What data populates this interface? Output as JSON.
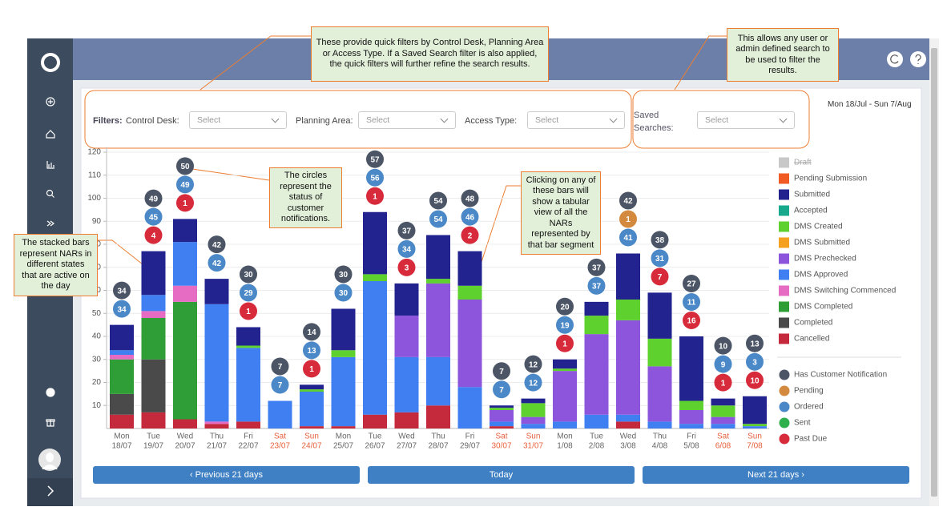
{
  "header": {
    "date_range": "Mon 18/Jul - Sun 7/Aug"
  },
  "filters": {
    "label": "Filters:",
    "control_desk": {
      "label": "Control Desk:",
      "placeholder": "Select"
    },
    "planning_area": {
      "label": "Planning Area:",
      "placeholder": "Select"
    },
    "access_type": {
      "label": "Access Type:",
      "placeholder": "Select"
    },
    "saved_searches": {
      "label": "Saved Searches:",
      "placeholder": "Select"
    }
  },
  "callouts": [
    "These provide quick filters by Control Desk, Planning Area or Access Type. If a Saved Search filter is also applied, the quick filters will further refine the search results.",
    "This allows any user or admin defined search to be used to filter the results.",
    "The circles represent the status of customer notifications.",
    "Clicking on any of these bars will show a tabular view of all the NARs represented by that bar segment",
    "The stacked bars represent NARs in different states that are active on the day"
  ],
  "buttons": {
    "previous": "‹ Previous 21 days",
    "today": "Today",
    "next": "Next 21 days ›"
  },
  "chart_data": {
    "type": "bar",
    "stacked": true,
    "days": [
      "Mon",
      "Tue",
      "Wed",
      "Thu",
      "Fri",
      "Sat",
      "Sun",
      "Mon",
      "Tue",
      "Wed",
      "Thu",
      "Fri",
      "Sat",
      "Sun",
      "Mon",
      "Tue",
      "Wed",
      "Thu",
      "Fri",
      "Sat",
      "Sun"
    ],
    "dates": [
      "18/07",
      "19/07",
      "20/07",
      "21/07",
      "22/07",
      "23/07",
      "24/07",
      "25/07",
      "26/07",
      "27/07",
      "28/07",
      "29/07",
      "30/07",
      "31/07",
      "1/08",
      "2/08",
      "3/08",
      "4/08",
      "5/08",
      "6/08",
      "7/08"
    ],
    "highlighted": [
      5,
      6,
      12,
      13,
      19,
      20
    ],
    "highlight_color": "#e8603c",
    "ylim": [
      0,
      120
    ],
    "yticks": [
      10,
      20,
      30,
      40,
      50,
      60,
      70,
      80,
      90,
      100,
      110,
      120
    ],
    "grid": true,
    "series": [
      {
        "name": "Draft",
        "color": "#c8c8c8",
        "hidden": true,
        "values": [
          null,
          null,
          null,
          null,
          null,
          null,
          null,
          null,
          null,
          null,
          null,
          null,
          null,
          null,
          null,
          null,
          null,
          null,
          null,
          null,
          null
        ]
      },
      {
        "name": "Pending Submission",
        "color": "#f15a22",
        "values": [
          null,
          null,
          null,
          null,
          null,
          null,
          null,
          null,
          null,
          null,
          null,
          null,
          null,
          null,
          null,
          null,
          null,
          null,
          null,
          null,
          null
        ]
      },
      {
        "name": "Submitted",
        "color": "#22238f",
        "values": [
          11,
          19,
          10,
          11,
          8,
          null,
          2,
          18,
          27,
          14,
          19,
          15,
          1,
          2,
          4,
          6,
          20,
          20,
          28,
          3,
          12
        ]
      },
      {
        "name": "Accepted",
        "color": "#18a88c",
        "values": [
          null,
          null,
          null,
          null,
          null,
          null,
          null,
          null,
          null,
          null,
          null,
          null,
          null,
          null,
          null,
          null,
          null,
          null,
          null,
          null,
          null
        ]
      },
      {
        "name": "DMS Created",
        "color": "#5fd12e",
        "values": [
          null,
          null,
          null,
          null,
          1,
          null,
          1,
          3,
          3,
          null,
          2,
          6,
          1,
          6,
          1,
          8,
          9,
          12,
          4,
          5,
          1
        ]
      },
      {
        "name": "DMS Submitted",
        "color": "#f5a01f",
        "values": [
          null,
          null,
          null,
          null,
          null,
          null,
          null,
          null,
          null,
          null,
          null,
          null,
          null,
          null,
          null,
          null,
          null,
          null,
          null,
          null,
          null
        ]
      },
      {
        "name": "DMS Prechecked",
        "color": "#8d55dc",
        "values": [
          null,
          null,
          null,
          null,
          null,
          null,
          null,
          null,
          null,
          18,
          32,
          38,
          5,
          3,
          22,
          35,
          41,
          24,
          6,
          3,
          null
        ]
      },
      {
        "name": "DMS Approved",
        "color": "#3f7ff2",
        "values": [
          2,
          7,
          19,
          51,
          32,
          12,
          15,
          30,
          58,
          24,
          21,
          18,
          2,
          2,
          3,
          6,
          3,
          3,
          2,
          2,
          1
        ]
      },
      {
        "name": "DMS Switching Commenced",
        "color": "#e66bc2",
        "values": [
          2,
          3,
          7,
          1,
          null,
          null,
          null,
          null,
          null,
          null,
          null,
          null,
          null,
          null,
          null,
          null,
          null,
          null,
          null,
          null,
          null
        ]
      },
      {
        "name": "DMS Completed",
        "color": "#2f9e36",
        "values": [
          15,
          18,
          51,
          null,
          null,
          null,
          null,
          null,
          null,
          null,
          null,
          null,
          null,
          null,
          null,
          null,
          null,
          null,
          null,
          null,
          null
        ]
      },
      {
        "name": "Completed",
        "color": "#4a4a4a",
        "values": [
          9,
          23,
          null,
          null,
          null,
          null,
          null,
          null,
          null,
          null,
          null,
          null,
          null,
          null,
          null,
          null,
          null,
          null,
          null,
          null,
          null
        ]
      },
      {
        "name": "Cancelled",
        "color": "#c42a3c",
        "values": [
          6,
          7,
          4,
          2,
          3,
          null,
          1,
          1,
          6,
          7,
          10,
          null,
          1,
          null,
          null,
          null,
          3,
          null,
          null,
          null,
          null
        ]
      }
    ],
    "circle_series": [
      {
        "name": "Has Customer Notification",
        "color": "#4b5566",
        "values": [
          34,
          49,
          50,
          42,
          30,
          7,
          14,
          30,
          57,
          37,
          54,
          48,
          7,
          12,
          20,
          37,
          42,
          38,
          27,
          10,
          13
        ]
      },
      {
        "name": "Pending",
        "color": "#d38a3e",
        "values": [
          null,
          null,
          null,
          null,
          null,
          null,
          null,
          null,
          null,
          null,
          null,
          null,
          null,
          null,
          null,
          null,
          1,
          null,
          null,
          null,
          null
        ]
      },
      {
        "name": "Ordered",
        "color": "#4b88c7",
        "values": [
          34,
          45,
          49,
          42,
          29,
          7,
          13,
          30,
          56,
          34,
          54,
          46,
          7,
          12,
          19,
          37,
          41,
          31,
          11,
          9,
          3
        ]
      },
      {
        "name": "Sent",
        "color": "#2fb04d",
        "values": [
          null,
          null,
          null,
          null,
          null,
          null,
          null,
          null,
          null,
          null,
          null,
          null,
          null,
          null,
          null,
          null,
          null,
          null,
          null,
          null,
          null
        ]
      },
      {
        "name": "Past Due",
        "color": "#d72b3b",
        "values": [
          null,
          4,
          1,
          null,
          1,
          null,
          1,
          null,
          1,
          3,
          null,
          2,
          null,
          null,
          1,
          null,
          null,
          7,
          16,
          1,
          10
        ]
      }
    ]
  }
}
